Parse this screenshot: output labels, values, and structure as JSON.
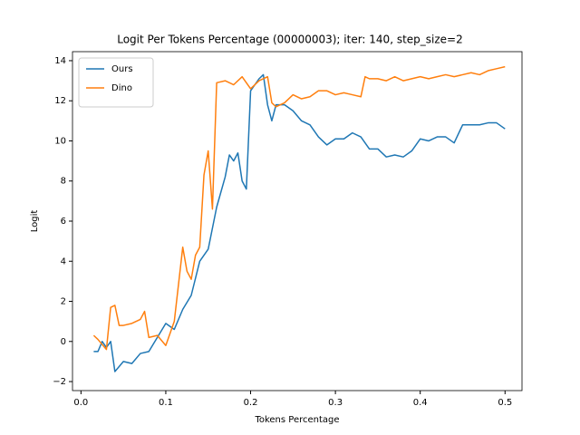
{
  "chart_data": {
    "type": "line",
    "title": "Logit Per Tokens Percentage (00000003); iter: 140, step_size=2",
    "x_label": "Tokens Percentage",
    "y_label": "Logit",
    "xlim": [
      -0.01,
      0.52
    ],
    "ylim": [
      -2.45,
      14.45
    ],
    "xticks": [
      {
        "value": 0,
        "label": "0.0"
      },
      0.1,
      0.2,
      0.3,
      0.4,
      0.5
    ],
    "yticks": [
      {
        "value": -2,
        "label": "−2"
      },
      0,
      2,
      4,
      6,
      8,
      10,
      12,
      14
    ],
    "legend": "upper left",
    "series": [
      {
        "name": "Ours",
        "color": "#1f77b4",
        "x": [
          0.015,
          0.02,
          0.025,
          0.03,
          0.035,
          0.04,
          0.05,
          0.06,
          0.07,
          0.08,
          0.09,
          0.1,
          0.11,
          0.12,
          0.13,
          0.14,
          0.15,
          0.16,
          0.17,
          0.175,
          0.18,
          0.185,
          0.19,
          0.195,
          0.2,
          0.21,
          0.215,
          0.22,
          0.225,
          0.23,
          0.24,
          0.25,
          0.26,
          0.27,
          0.28,
          0.29,
          0.3,
          0.31,
          0.32,
          0.33,
          0.34,
          0.35,
          0.36,
          0.37,
          0.38,
          0.39,
          0.4,
          0.41,
          0.42,
          0.43,
          0.44,
          0.45,
          0.46,
          0.47,
          0.48,
          0.49,
          0.5
        ],
        "values": [
          -0.5,
          -0.5,
          0.0,
          -0.3,
          0.0,
          -1.5,
          -1.0,
          -1.1,
          -0.6,
          -0.5,
          0.2,
          0.9,
          0.6,
          1.6,
          2.3,
          4.0,
          4.6,
          6.7,
          8.2,
          9.3,
          9.0,
          9.4,
          8.0,
          7.6,
          12.5,
          13.1,
          13.3,
          11.8,
          11.0,
          11.8,
          11.8,
          11.5,
          11.0,
          10.8,
          10.2,
          9.8,
          10.1,
          10.1,
          10.4,
          10.2,
          9.6,
          9.6,
          9.2,
          9.3,
          9.2,
          9.5,
          10.1,
          10.0,
          10.2,
          10.2,
          9.9,
          10.8,
          10.8,
          10.8,
          10.9,
          10.9,
          10.6
        ]
      },
      {
        "name": "Dino",
        "color": "#ff7f0e",
        "x": [
          0.015,
          0.02,
          0.03,
          0.035,
          0.04,
          0.045,
          0.05,
          0.06,
          0.07,
          0.075,
          0.08,
          0.09,
          0.1,
          0.11,
          0.12,
          0.125,
          0.13,
          0.135,
          0.14,
          0.145,
          0.15,
          0.155,
          0.16,
          0.17,
          0.18,
          0.19,
          0.2,
          0.21,
          0.22,
          0.225,
          0.23,
          0.24,
          0.25,
          0.26,
          0.27,
          0.28,
          0.29,
          0.3,
          0.31,
          0.32,
          0.33,
          0.335,
          0.34,
          0.35,
          0.36,
          0.37,
          0.38,
          0.39,
          0.4,
          0.41,
          0.42,
          0.43,
          0.44,
          0.45,
          0.46,
          0.47,
          0.48,
          0.49,
          0.5
        ],
        "values": [
          0.3,
          0.1,
          -0.4,
          1.7,
          1.8,
          0.8,
          0.8,
          0.9,
          1.1,
          1.5,
          0.2,
          0.3,
          -0.2,
          1.0,
          4.7,
          3.5,
          3.1,
          4.3,
          4.7,
          8.3,
          9.5,
          6.6,
          12.9,
          13.0,
          12.8,
          13.2,
          12.6,
          13.0,
          13.2,
          11.9,
          11.7,
          11.9,
          12.3,
          12.1,
          12.2,
          12.5,
          12.5,
          12.3,
          12.4,
          12.3,
          12.2,
          13.2,
          13.1,
          13.1,
          13.0,
          13.2,
          13.0,
          13.1,
          13.2,
          13.1,
          13.2,
          13.3,
          13.2,
          13.3,
          13.4,
          13.3,
          13.5,
          13.6,
          13.7
        ]
      }
    ]
  }
}
